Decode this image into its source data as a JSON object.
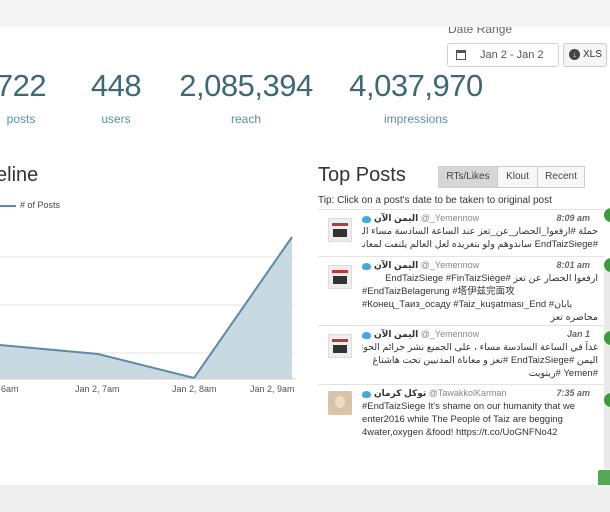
{
  "date_range": {
    "label": "Date Range",
    "value": "Jan 2 - Jan 2",
    "xls_label": "XLS"
  },
  "stats": [
    {
      "value": "722",
      "label": "posts"
    },
    {
      "value": "448",
      "label": "users"
    },
    {
      "value": "2,085,394",
      "label": "reach"
    },
    {
      "value": "4,037,970",
      "label": "impressions"
    }
  ],
  "timeline": {
    "title": "eline",
    "chart_data": {
      "type": "area",
      "title": "",
      "series": [
        {
          "name": "# of Posts"
        }
      ],
      "x_ticks": [
        "6am",
        "Jan 2, 7am",
        "Jan 2, 8am",
        "Jan 2, 9am"
      ]
    }
  },
  "top_posts": {
    "title": "Top Posts",
    "tabs": [
      "RTs/Likes",
      "Klout",
      "Recent"
    ],
    "tip": "Tip: Click on a post's date to be taken to original post",
    "posts": [
      {
        "name": "اليمن الآن",
        "handle": "@_Yemennow",
        "time": "8:09 am",
        "lines": [
          {
            "text": "حملة #ارفعوا_الحصار_عن_تعز عند الساعة السادسة مساء اليوم السبت",
            "dir": "rtl"
          },
          {
            "text": "#EndTaizSiege ساندوهم ولو بتغريده لعل العالم يلتفت لمعاناتهم",
            "dir": "rtl"
          }
        ]
      },
      {
        "name": "اليمن الآن",
        "handle": "@_Yemennow",
        "time": "8:01 am",
        "lines": [
          {
            "text": "ارفعوا الحصار عن تعز #EndTaizSiege #FinTaizSiège",
            "dir": "rtl"
          },
          {
            "text": "#EndTaizBelagerung #塔伊兹完面攻",
            "dir": "ltr"
          },
          {
            "text": "#Конец_Таиз_осаду #Taiz_kuşatması_End #يابان",
            "dir": "ltr"
          },
          {
            "text": "محاصره تعز",
            "dir": "rtl"
          }
        ]
      },
      {
        "name": "اليمن الآن",
        "handle": "@_Yemennow",
        "time": "Jan 1",
        "lines": [
          {
            "text": "غداً في الساعة السادسة مساء ، على الجميع نشر جرائم الحوثيين في",
            "dir": "rtl"
          },
          {
            "text": "اليمن #EndTaizSiege #تعز و معاناة المدنيين تحت هاشتاغ",
            "dir": "rtl"
          },
          {
            "text": "#Yemen #ريتويت",
            "dir": "rtl"
          }
        ]
      },
      {
        "name": "توكل كرمان",
        "handle": "@TawakkolKarman",
        "time": "7:35 am",
        "lines": [
          {
            "text": "#EndTaizSiege It's shame on our humanity that we",
            "dir": "ltr"
          },
          {
            "text": "enter2016 while The People of Taiz are begging",
            "dir": "ltr"
          },
          {
            "text": "4water,oxygen &food! https://t.co/UoGNFNo42",
            "dir": "ltr"
          }
        ]
      }
    ]
  },
  "colors": {
    "stat_number": "#3f6977",
    "stat_label": "#5891a3",
    "series_line": "#5b8aa3",
    "series_fill": "#c9d9e2",
    "accent_green": "#3d9a3d"
  }
}
